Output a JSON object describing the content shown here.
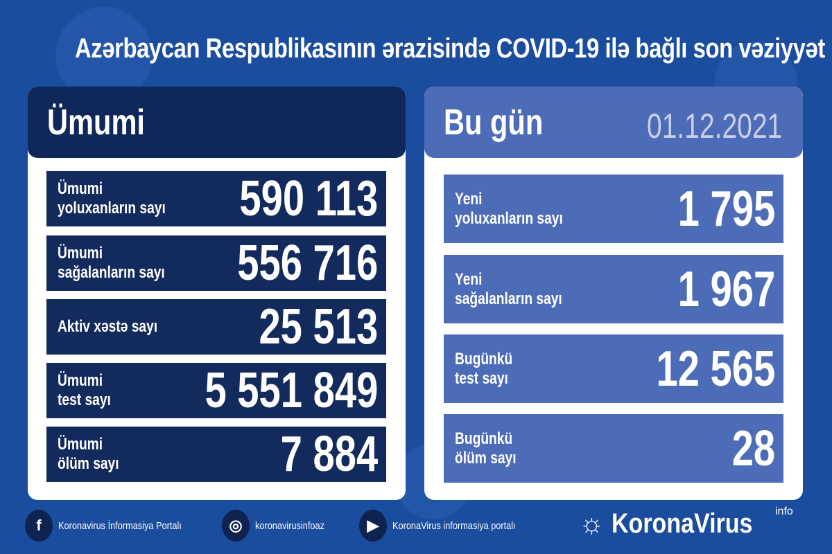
{
  "title": "Azərbaycan Respublikasının ərazisində COVID-19 ilə bağlı son vəziyyət",
  "colors": {
    "background": "#1b4d9e",
    "left_panel": "#10275a",
    "right_panel": "#4d6cb7"
  },
  "total": {
    "heading": "Ümumi",
    "rows": [
      {
        "label": "Ümumi\nyoluxanların sayı",
        "value": "590 113"
      },
      {
        "label": "Ümumi\nsağalanların sayı",
        "value": "556 716"
      },
      {
        "label": "Aktiv xəstə sayı",
        "value": "25 513"
      },
      {
        "label": "Ümumi\ntest sayı",
        "value": "5 551 849"
      },
      {
        "label": "Ümumi\nölüm sayı",
        "value": "7 884"
      }
    ]
  },
  "today": {
    "heading": "Bu gün",
    "date": "01.12.2021",
    "rows": [
      {
        "label": "Yeni\nyoluxanların sayı",
        "value": "1 795"
      },
      {
        "label": "Yeni\nsağalanların sayı",
        "value": "1 967"
      },
      {
        "label": "Bugünkü\ntest sayı",
        "value": "12 565"
      },
      {
        "label": "Bugünkü\nölüm sayı",
        "value": "28"
      }
    ]
  },
  "footer": {
    "facebook": "Koronavirus İnformasiya Portalı",
    "instagram": "koronavirusinfoaz",
    "youtube": "KoronaVirus informasiya portalı",
    "logo": "KoronaVirus",
    "logo_sup": "info"
  }
}
